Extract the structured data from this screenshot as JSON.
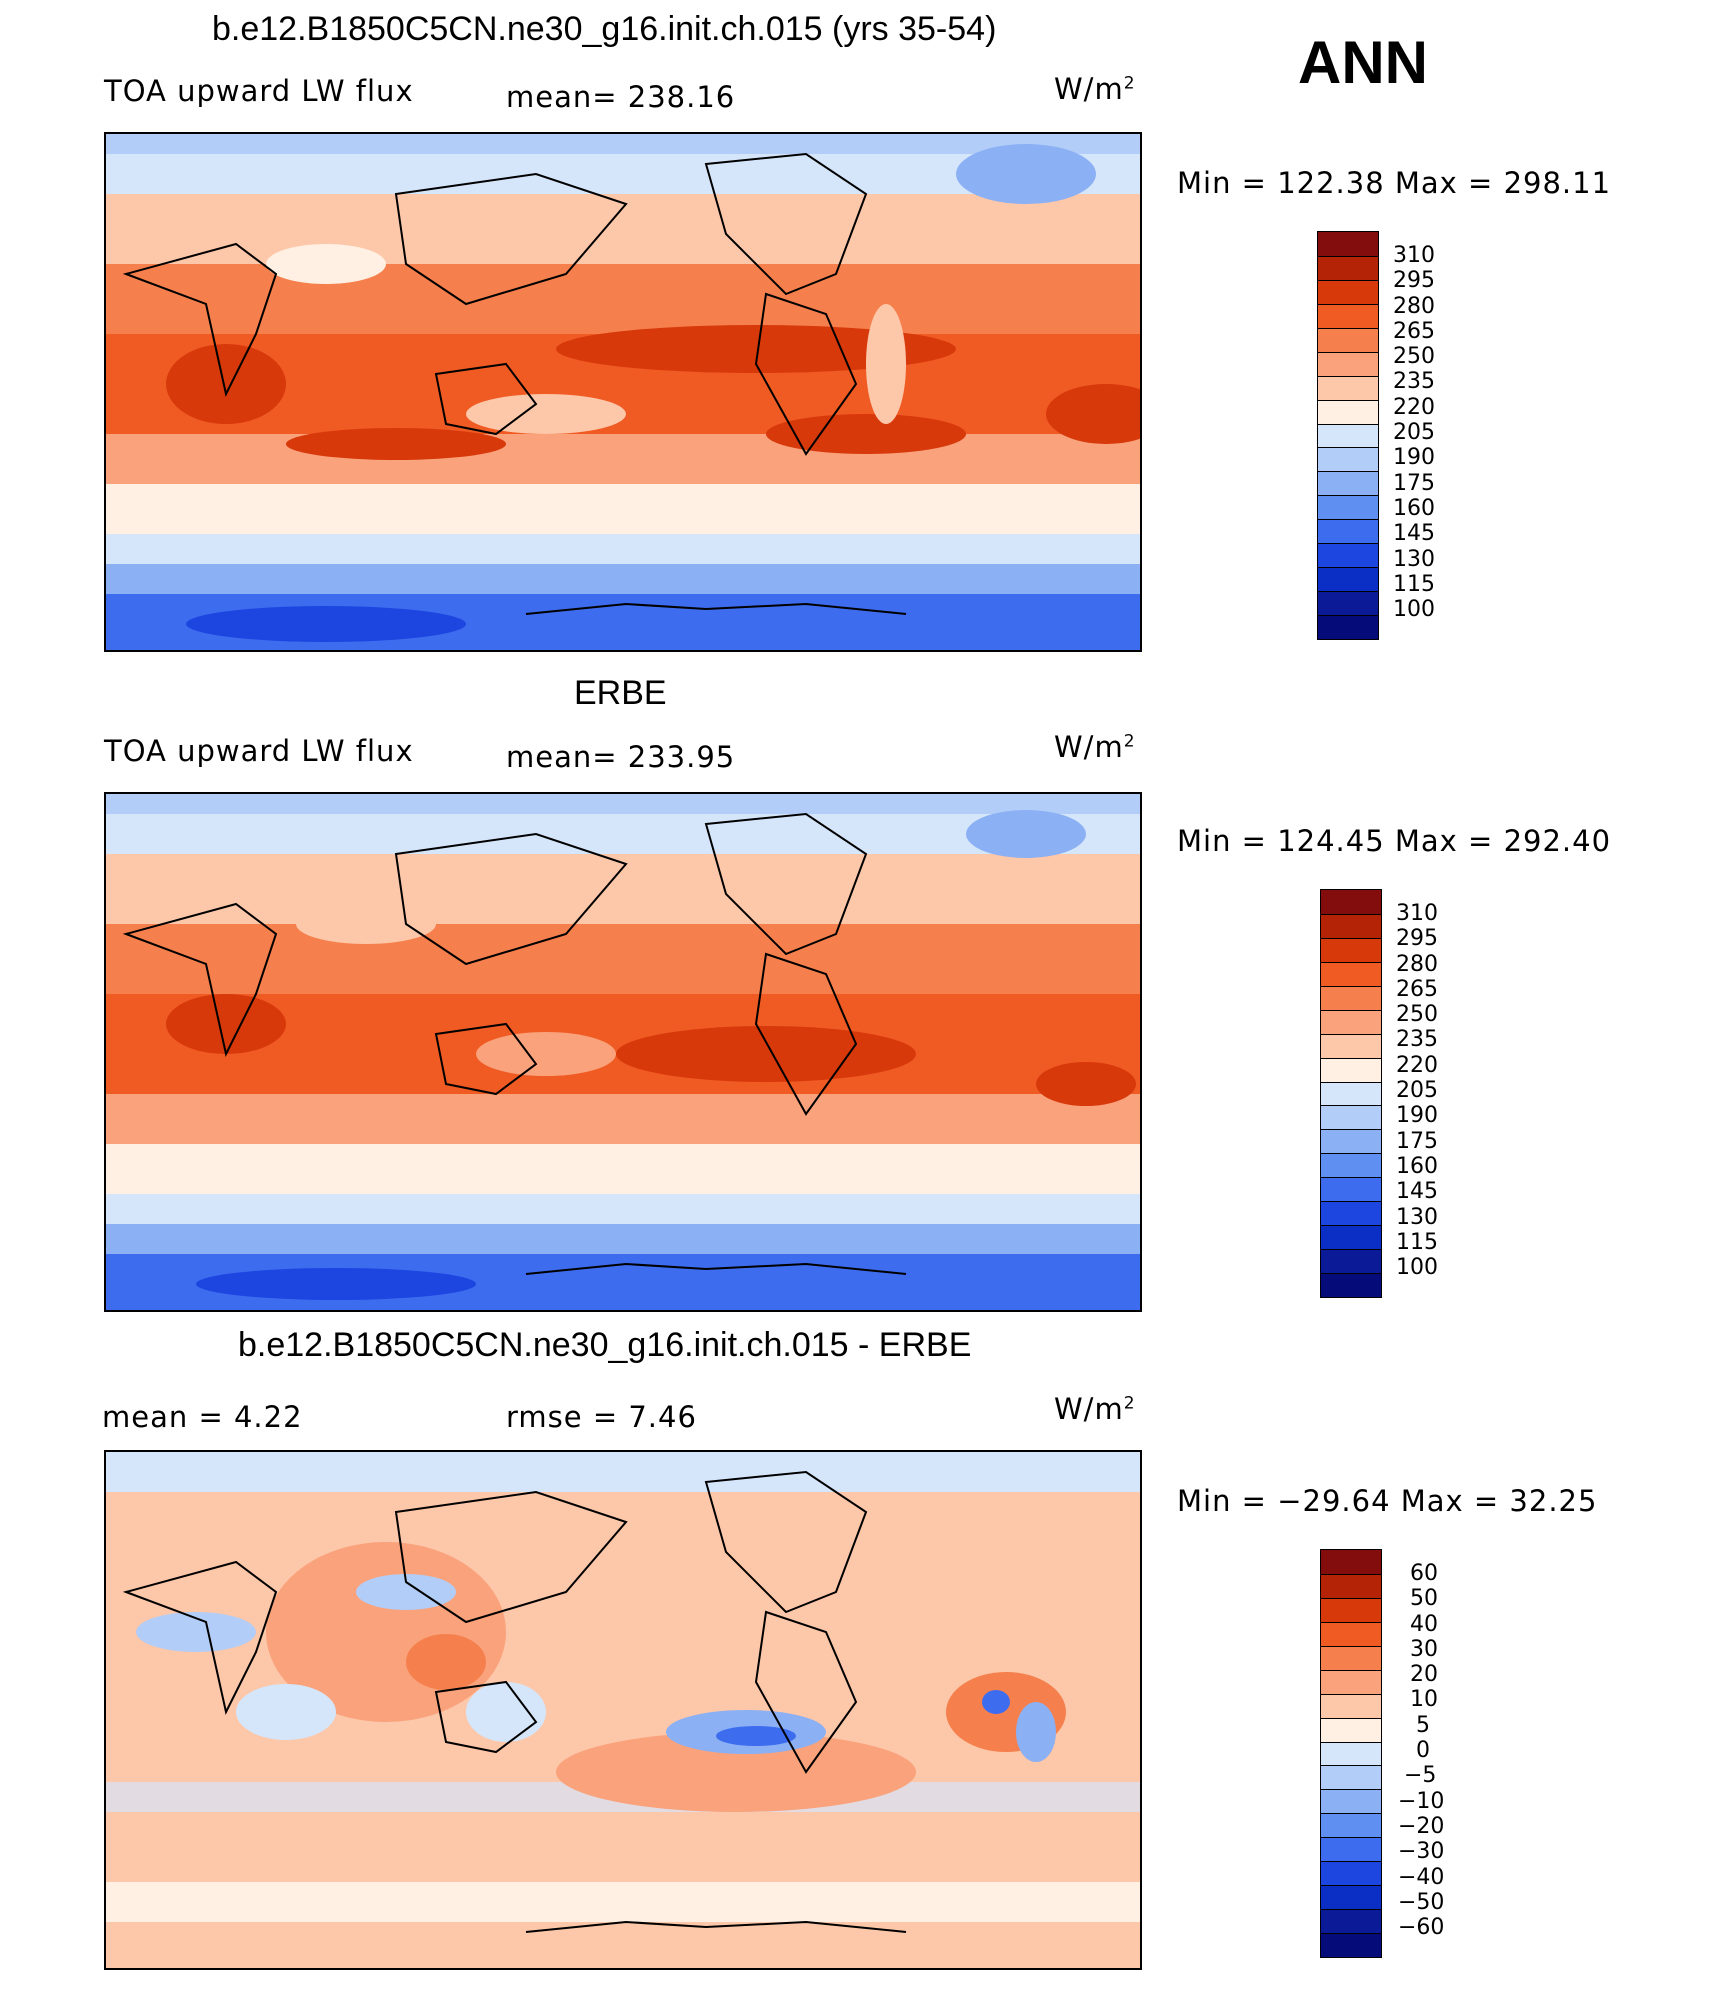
{
  "season": "ANN",
  "colorbar_top": [
    "#830d0d",
    "#b42305",
    "#d8390b",
    "#f05a23",
    "#f6804d",
    "#f9a27b",
    "#fdc7a9",
    "#fff0e3",
    "#d5e6fb",
    "#b2cdf7",
    "#8bb0f4",
    "#5f8ff1",
    "#3e6cef",
    "#1d45e0",
    "#0b2ec5",
    "#0b1a97",
    "#060b7a"
  ],
  "colorbar_diff": [
    "#830d0d",
    "#b42305",
    "#d8390b",
    "#f05a23",
    "#f6804d",
    "#f9a27b",
    "#fdc7a9",
    "#fff0e3",
    "#d5e6fb",
    "#b2cdf7",
    "#8bb0f4",
    "#5f8ff1",
    "#3e6cef",
    "#1d45e0",
    "#0b2ec5",
    "#0b1a97",
    "#060b7a"
  ],
  "panels": [
    {
      "title": "b.e12.B1850C5CN.ne30_g16.init.ch.015 (yrs 35-54)",
      "left_label": "TOA upward LW flux",
      "center_label": "mean=  238.16",
      "units": "W/m",
      "units_sup": "2",
      "minmax": "Min  =  122.38  Max  =  298.11",
      "ticks": [
        "310",
        "295",
        "280",
        "265",
        "250",
        "235",
        "220",
        "205",
        "190",
        "175",
        "160",
        "145",
        "130",
        "115",
        "100"
      ]
    },
    {
      "title": "ERBE",
      "left_label": "TOA upward LW flux",
      "center_label": "mean=  233.95",
      "units": "W/m",
      "units_sup": "2",
      "minmax": "Min  =  124.45  Max  =  292.40",
      "ticks": [
        "310",
        "295",
        "280",
        "265",
        "250",
        "235",
        "220",
        "205",
        "190",
        "175",
        "160",
        "145",
        "130",
        "115",
        "100"
      ]
    },
    {
      "title": "b.e12.B1850C5CN.ne30_g16.init.ch.015 - ERBE",
      "left_label": "mean  =     4.22",
      "center_label": "rmse  =     7.46",
      "units": "W/m",
      "units_sup": "2",
      "minmax": "Min  =  −29.64  Max  =    32.25",
      "ticks": [
        "60",
        "50",
        "40",
        "30",
        "20",
        "10",
        "5",
        "0",
        "−5",
        "−10",
        "−20",
        "−30",
        "−40",
        "−50",
        "−60"
      ]
    }
  ]
}
